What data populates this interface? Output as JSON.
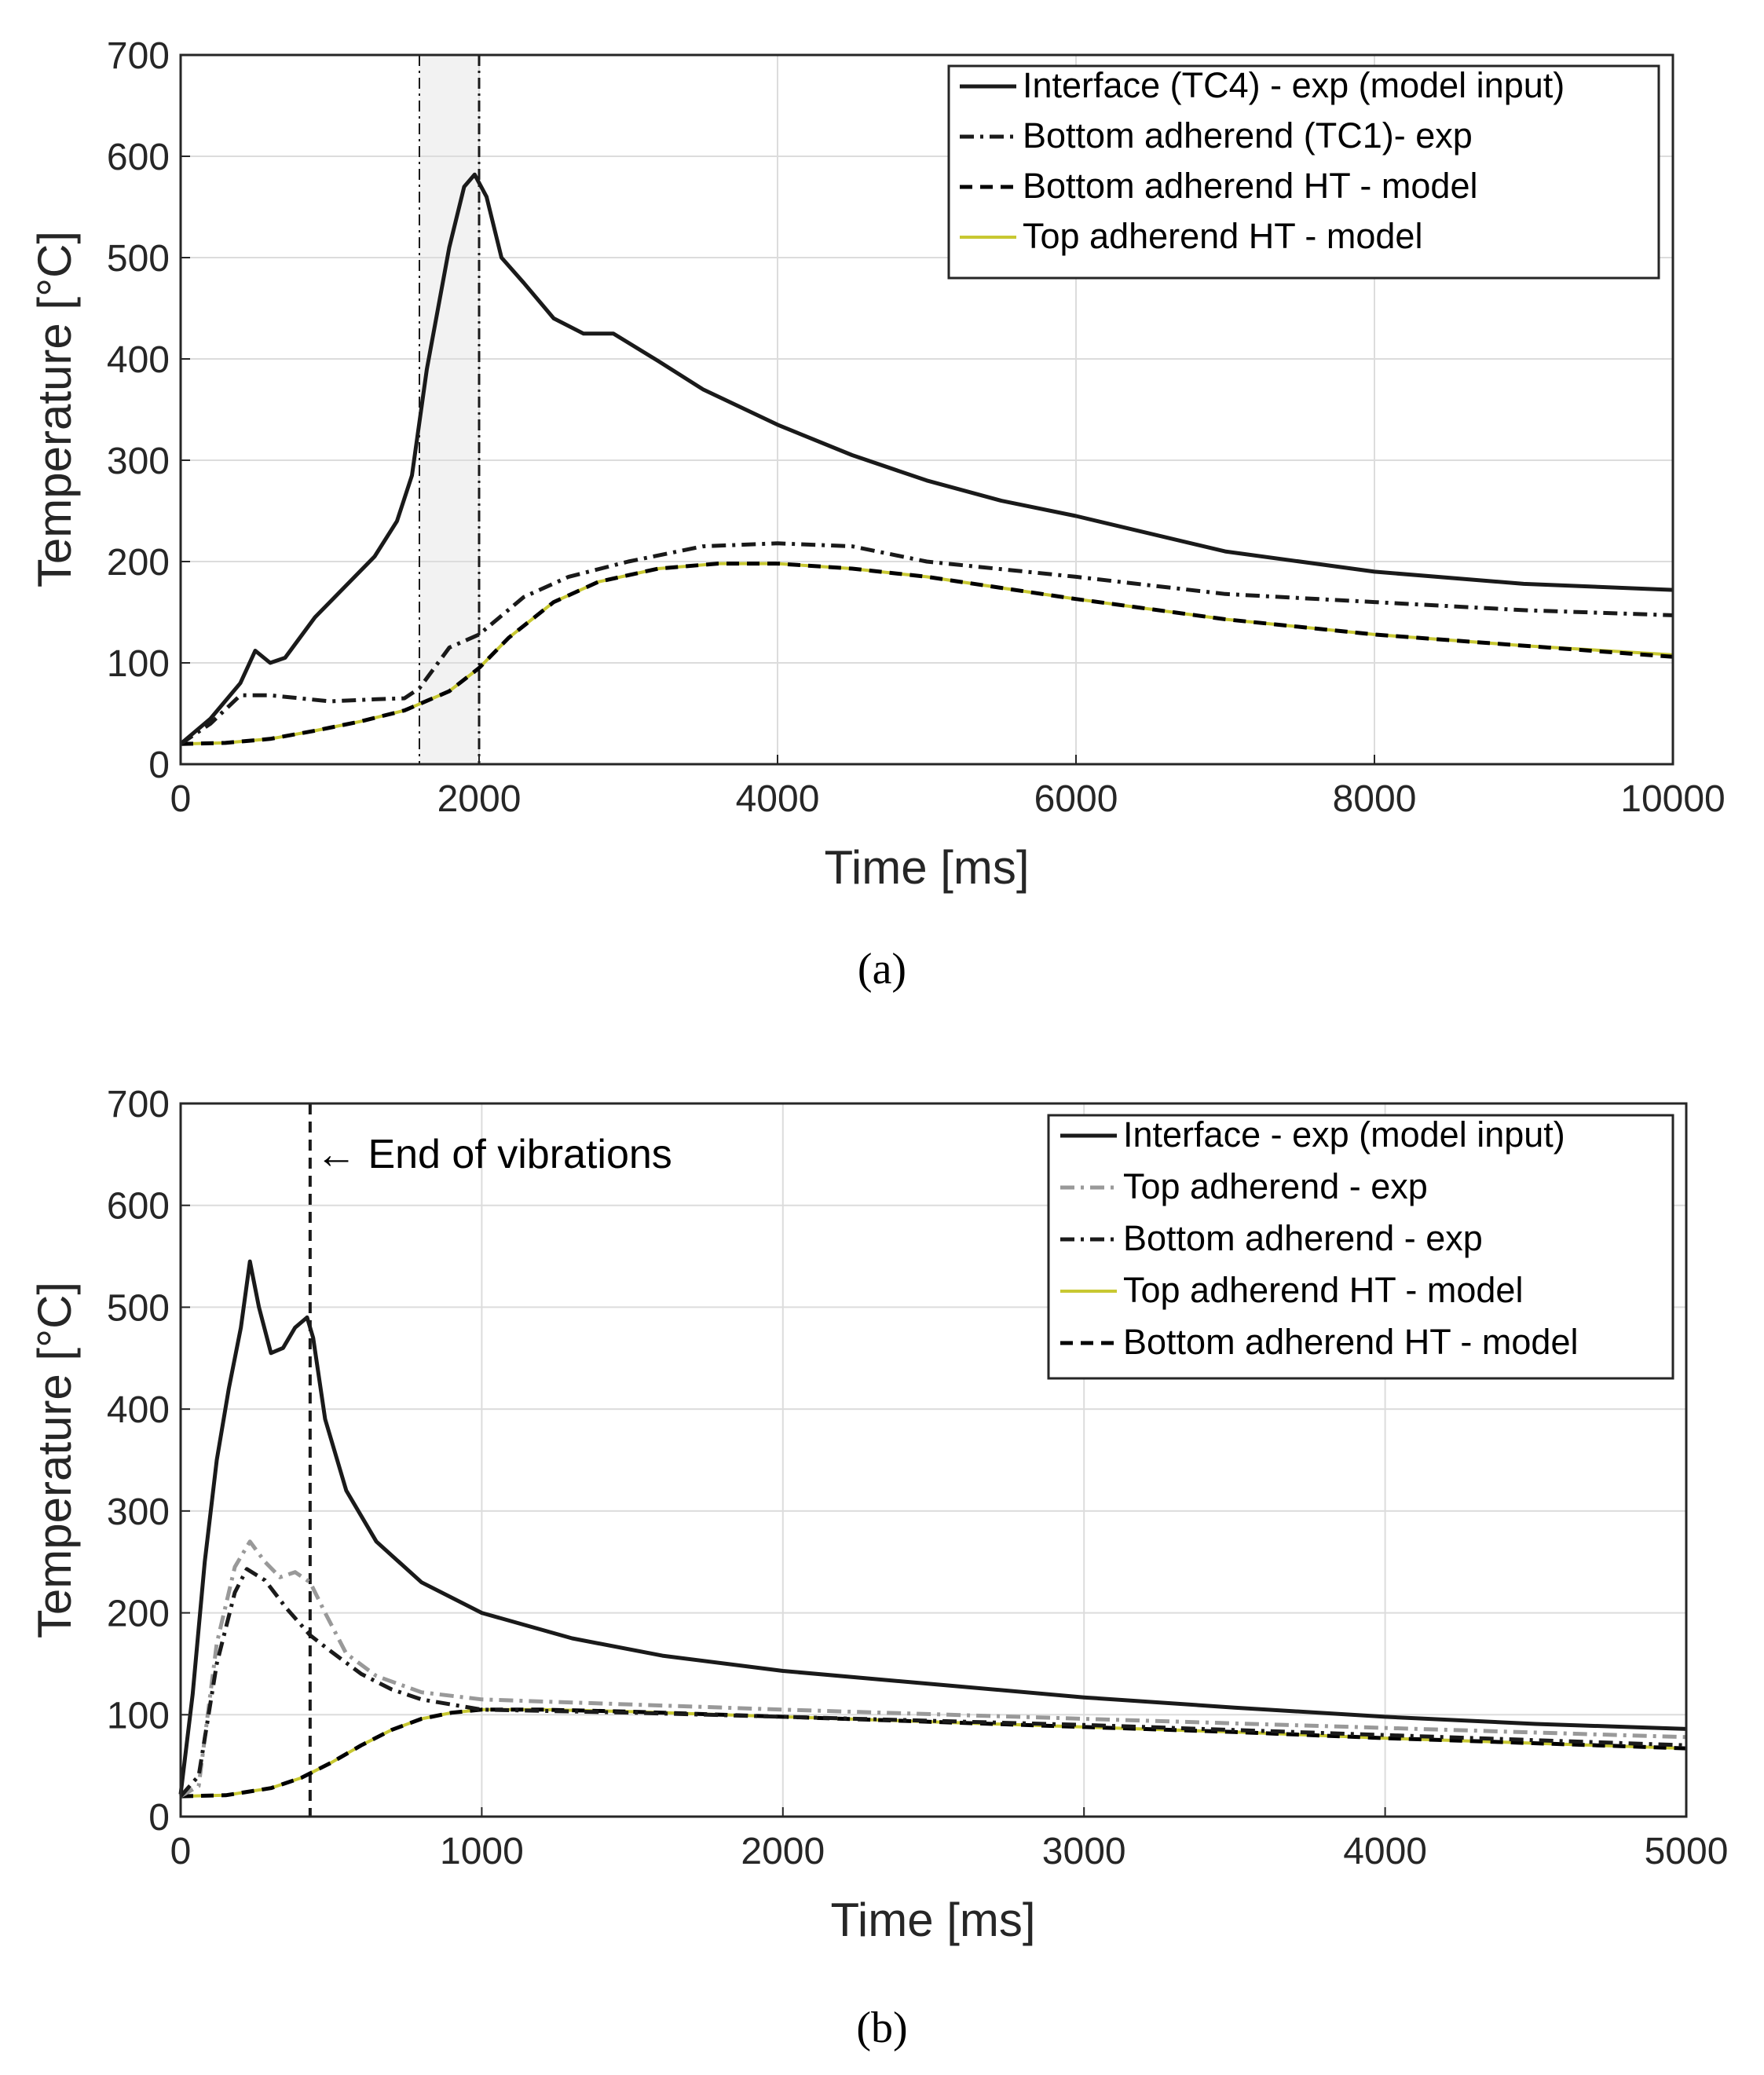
{
  "chart_data": [
    {
      "type": "line",
      "xlabel": "Time [ms]",
      "ylabel": "Temperature [°C]",
      "xlim": [
        0,
        10000
      ],
      "ylim": [
        0,
        700
      ],
      "xticks": [
        "0",
        "2000",
        "4000",
        "6000",
        "8000",
        "10000"
      ],
      "yticks": [
        "0",
        "100",
        "200",
        "300",
        "400",
        "500",
        "600",
        "700"
      ],
      "grid": true,
      "legend_position": "top-right",
      "caption": "(a)",
      "shaded_band": [
        1600,
        2000
      ],
      "series": [
        {
          "name": "Interface (TC4) - exp (model input)",
          "color": "#1a1a1a",
          "dash": "solid",
          "x": [
            0,
            200,
            400,
            500,
            600,
            700,
            900,
            1100,
            1300,
            1450,
            1550,
            1650,
            1800,
            1900,
            1970,
            2050,
            2150,
            2300,
            2500,
            2700,
            2900,
            3200,
            3500,
            4000,
            4500,
            5000,
            5500,
            6000,
            7000,
            8000,
            9000,
            10000
          ],
          "y": [
            20,
            45,
            80,
            112,
            100,
            105,
            145,
            175,
            205,
            240,
            285,
            390,
            510,
            570,
            582,
            560,
            500,
            475,
            440,
            425,
            425,
            398,
            370,
            335,
            305,
            280,
            260,
            245,
            210,
            190,
            178,
            172
          ]
        },
        {
          "name": "Bottom adherend (TC1)- exp",
          "color": "#1a1a1a",
          "dash": "dashdot",
          "x": [
            0,
            200,
            400,
            600,
            800,
            1000,
            1300,
            1500,
            1600,
            1800,
            2000,
            2300,
            2600,
            3000,
            3500,
            4000,
            4500,
            5000,
            6000,
            7000,
            8000,
            9000,
            10000
          ],
          "y": [
            20,
            40,
            68,
            68,
            65,
            62,
            64,
            65,
            75,
            115,
            128,
            165,
            185,
            200,
            215,
            218,
            215,
            200,
            185,
            168,
            160,
            152,
            147
          ]
        },
        {
          "name": "Bottom adherend HT - model",
          "color": "#000000",
          "dash": "dashed",
          "x": [
            0,
            300,
            600,
            900,
            1200,
            1500,
            1800,
            2000,
            2200,
            2500,
            2800,
            3200,
            3600,
            4000,
            4500,
            5000,
            6000,
            7000,
            8000,
            9000,
            10000
          ],
          "y": [
            20,
            21,
            25,
            33,
            42,
            53,
            72,
            95,
            125,
            160,
            180,
            193,
            198,
            198,
            193,
            185,
            163,
            143,
            128,
            117,
            106
          ]
        },
        {
          "name": "Top adherend HT - model",
          "color": "#c8c832",
          "dash": "solid",
          "x": [
            0,
            300,
            600,
            900,
            1200,
            1500,
            1800,
            2000,
            2200,
            2500,
            2800,
            3200,
            3600,
            4000,
            4500,
            5000,
            6000,
            7000,
            8000,
            9000,
            10000
          ],
          "y": [
            20,
            21,
            25,
            33,
            42,
            53,
            72,
            95,
            125,
            160,
            180,
            193,
            198,
            198,
            193,
            185,
            163,
            143,
            128,
            117,
            108
          ]
        }
      ]
    },
    {
      "type": "line",
      "xlabel": "Time [ms]",
      "ylabel": "Temperature [°C]",
      "xlim": [
        0,
        5000
      ],
      "ylim": [
        0,
        700
      ],
      "xticks": [
        "0",
        "1000",
        "2000",
        "3000",
        "4000",
        "5000"
      ],
      "yticks": [
        "0",
        "100",
        "200",
        "300",
        "400",
        "500",
        "600",
        "700"
      ],
      "grid": true,
      "legend_position": "top-right",
      "caption": "(b)",
      "vline": 430,
      "annotation": "← End of vibrations",
      "series": [
        {
          "name": "Interface - exp (model input)",
          "color": "#1a1a1a",
          "dash": "solid",
          "x": [
            0,
            40,
            80,
            120,
            160,
            200,
            230,
            260,
            300,
            340,
            380,
            420,
            440,
            480,
            550,
            650,
            800,
            1000,
            1300,
            1600,
            2000,
            2500,
            3000,
            3500,
            4000,
            4500,
            5000
          ],
          "y": [
            22,
            120,
            250,
            350,
            420,
            480,
            545,
            500,
            455,
            460,
            480,
            490,
            470,
            390,
            320,
            270,
            230,
            200,
            175,
            158,
            143,
            130,
            117,
            107,
            98,
            91,
            86
          ]
        },
        {
          "name": "Top adherend - exp",
          "color": "#999999",
          "dash": "dashdot",
          "x": [
            0,
            60,
            120,
            180,
            230,
            280,
            330,
            380,
            430,
            480,
            550,
            650,
            800,
            1000,
            1500,
            2000,
            3000,
            4000,
            5000
          ],
          "y": [
            20,
            30,
            170,
            245,
            270,
            250,
            235,
            240,
            230,
            200,
            160,
            138,
            122,
            115,
            110,
            105,
            96,
            87,
            78
          ]
        },
        {
          "name": "Bottom adherend - exp",
          "color": "#1a1a1a",
          "dash": "dashdot",
          "x": [
            0,
            60,
            120,
            180,
            220,
            280,
            350,
            430,
            500,
            600,
            700,
            800,
            1000,
            1500,
            2000,
            3000,
            4000,
            5000
          ],
          "y": [
            20,
            40,
            150,
            220,
            243,
            232,
            205,
            178,
            162,
            140,
            125,
            115,
            105,
            102,
            98,
            90,
            80,
            70
          ]
        },
        {
          "name": "Top adherend HT - model",
          "color": "#c8c832",
          "dash": "solid",
          "x": [
            0,
            150,
            300,
            400,
            500,
            600,
            700,
            800,
            900,
            1000,
            1200,
            1500,
            2000,
            2500,
            3000,
            3500,
            4000,
            4500,
            5000
          ],
          "y": [
            20,
            21,
            28,
            38,
            53,
            70,
            85,
            96,
            102,
            105,
            105,
            103,
            98,
            93,
            88,
            83,
            77,
            72,
            67
          ]
        },
        {
          "name": "Bottom adherend HT - model",
          "color": "#000000",
          "dash": "dashed",
          "x": [
            0,
            150,
            300,
            400,
            500,
            600,
            700,
            800,
            900,
            1000,
            1200,
            1500,
            2000,
            2500,
            3000,
            3500,
            4000,
            4500,
            5000
          ],
          "y": [
            20,
            21,
            28,
            38,
            53,
            70,
            85,
            96,
            102,
            105,
            105,
            103,
            98,
            93,
            88,
            83,
            77,
            72,
            67
          ]
        }
      ]
    }
  ]
}
